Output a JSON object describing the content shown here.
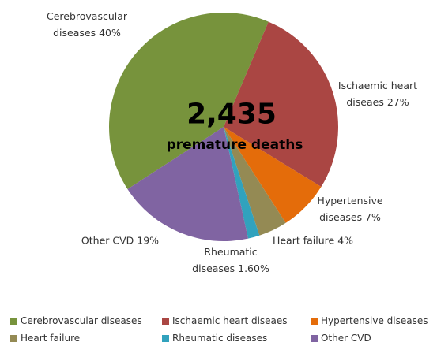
{
  "chart_data": {
    "type": "pie",
    "annotations": [
      "2,435",
      "premature deaths"
    ],
    "categories": [
      "Cerebrovascular diseases",
      "Ischaemic heart diseaes",
      "Hypertensive diseases",
      "Heart failure",
      "Rheumatic diseases",
      "Other CVD"
    ],
    "values": [
      40,
      27,
      7,
      4,
      1.6,
      19
    ],
    "value_labels": [
      "Cerebrovascular diseases 40%",
      "Ischaemic heart diseaes 27%",
      "Hypertensive diseases 7%",
      "Heart failure 4%",
      "Rheumatic diseases 1.60%",
      "Other CVD 19%"
    ],
    "colors": [
      "#77933c",
      "#aa4643",
      "#e46c0a",
      "#948a54",
      "#31a2bd",
      "#8064a2"
    ],
    "legend": "bottom"
  }
}
